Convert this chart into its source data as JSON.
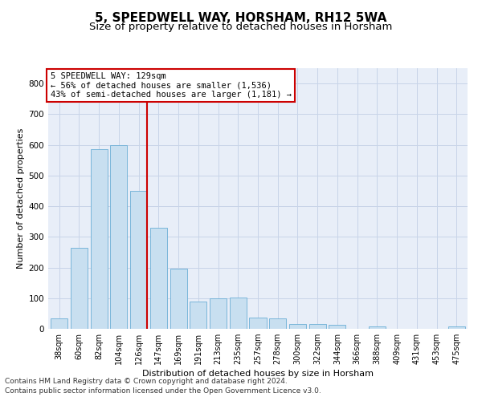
{
  "title": "5, SPEEDWELL WAY, HORSHAM, RH12 5WA",
  "subtitle": "Size of property relative to detached houses in Horsham",
  "xlabel": "Distribution of detached houses by size in Horsham",
  "ylabel": "Number of detached properties",
  "bar_labels": [
    "38sqm",
    "60sqm",
    "82sqm",
    "104sqm",
    "126sqm",
    "147sqm",
    "169sqm",
    "191sqm",
    "213sqm",
    "235sqm",
    "257sqm",
    "278sqm",
    "300sqm",
    "322sqm",
    "344sqm",
    "366sqm",
    "388sqm",
    "409sqm",
    "431sqm",
    "453sqm",
    "475sqm"
  ],
  "bar_values": [
    35,
    265,
    585,
    600,
    450,
    330,
    195,
    90,
    100,
    103,
    37,
    33,
    17,
    17,
    13,
    0,
    7,
    0,
    0,
    0,
    7
  ],
  "bar_color": "#c8dff0",
  "bar_edgecolor": "#6baed6",
  "highlight_color": "#cc0000",
  "vline_bar_index": 4,
  "annotation_text": "5 SPEEDWELL WAY: 129sqm\n← 56% of detached houses are smaller (1,536)\n43% of semi-detached houses are larger (1,181) →",
  "annotation_box_color": "#cc0000",
  "ylim": [
    0,
    850
  ],
  "yticks": [
    0,
    100,
    200,
    300,
    400,
    500,
    600,
    700,
    800
  ],
  "grid_color": "#c8d4e8",
  "bg_color": "#e8eef8",
  "footer_line1": "Contains HM Land Registry data © Crown copyright and database right 2024.",
  "footer_line2": "Contains public sector information licensed under the Open Government Licence v3.0.",
  "title_fontsize": 11,
  "subtitle_fontsize": 9.5,
  "label_fontsize": 8,
  "tick_fontsize": 7,
  "annotation_fontsize": 7.5,
  "footer_fontsize": 6.5
}
